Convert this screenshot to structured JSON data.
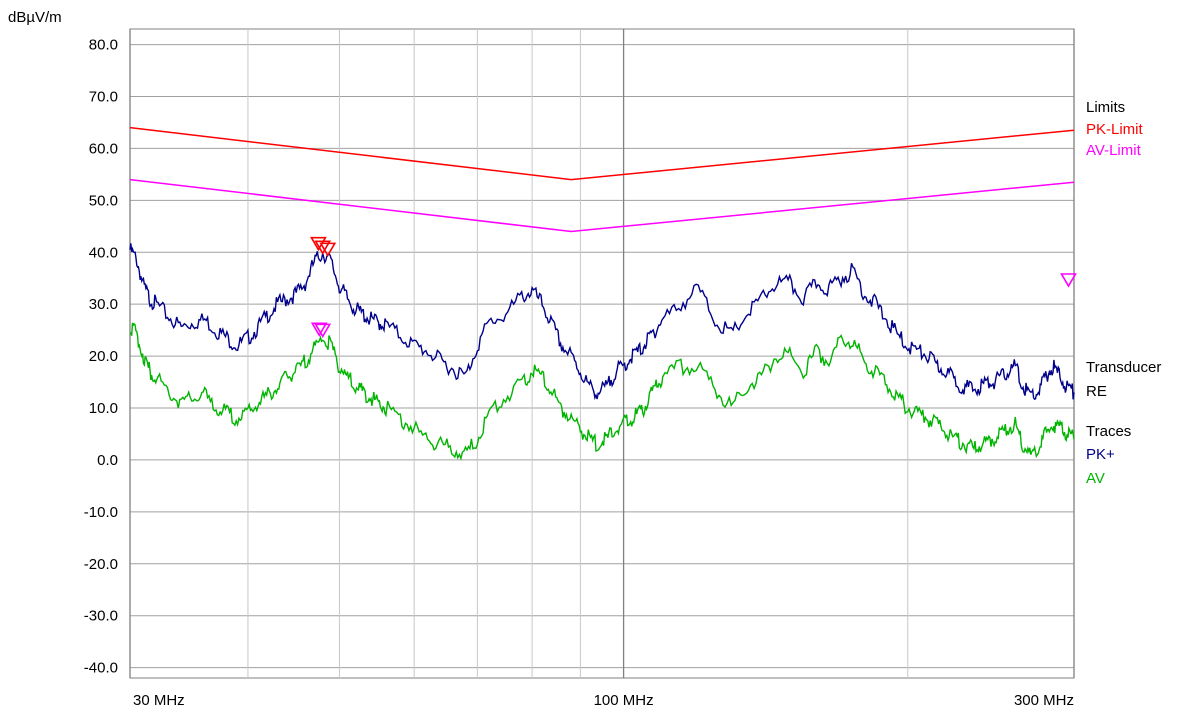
{
  "chart_data": {
    "type": "line",
    "ylabel": "dBµV/m",
    "xscale": "log",
    "xlim": [
      30,
      300
    ],
    "ylim": [
      -40,
      80
    ],
    "grid": true,
    "y_ticks": [
      "80.0",
      "70.0",
      "60.0",
      "50.0",
      "40.0",
      "30.0",
      "20.0",
      "10.0",
      "0.0",
      "-10.0",
      "-20.0",
      "-30.0",
      "-40.0"
    ],
    "x_ticks": [
      {
        "value": 30,
        "label": "30 MHz"
      },
      {
        "value": 100,
        "label": "100 MHz"
      },
      {
        "value": 300,
        "label": "300 MHz"
      }
    ],
    "x_gridlines_mhz": [
      30,
      40,
      50,
      60,
      70,
      80,
      90,
      100,
      200,
      300
    ],
    "legend": {
      "limits_heading": "Limits",
      "transducer_heading": "Transducer",
      "traces_heading": "Traces",
      "transducer_name": "RE"
    },
    "limits": [
      {
        "name": "PK-Limit",
        "color": "#ff0000",
        "x": [
          30,
          88,
          300
        ],
        "y": [
          64.0,
          54.0,
          63.5
        ]
      },
      {
        "name": "AV-Limit",
        "color": "#ff00ff",
        "x": [
          30,
          88,
          300
        ],
        "y": [
          54.0,
          44.0,
          53.5
        ]
      }
    ],
    "series": [
      {
        "name": "PK+",
        "color": "#00008b",
        "x": [
          30,
          30.5,
          31,
          31.5,
          32,
          33,
          34,
          35,
          36,
          37,
          38,
          39,
          40,
          41,
          42,
          43,
          44,
          45,
          46,
          47,
          48,
          49,
          50,
          51,
          52,
          53,
          54,
          55,
          56,
          58,
          60,
          62,
          64,
          66,
          68,
          70,
          72,
          75,
          78,
          80,
          82,
          84,
          86,
          88,
          90,
          92,
          94,
          96,
          98,
          100,
          102,
          104,
          106,
          108,
          110,
          115,
          120,
          125,
          130,
          135,
          140,
          145,
          150,
          155,
          160,
          165,
          170,
          175,
          180,
          185,
          190,
          195,
          200,
          205,
          210,
          215,
          220,
          225,
          230,
          235,
          240,
          245,
          250,
          255,
          260,
          265,
          270,
          275,
          280,
          285,
          290,
          295,
          300
        ],
        "y": [
          40.5,
          38.5,
          33.5,
          31,
          30,
          27.5,
          25.5,
          26.5,
          27,
          25,
          23.5,
          22,
          23.5,
          25.5,
          28,
          30,
          31,
          32,
          34,
          38,
          40,
          38,
          33.5,
          31,
          29,
          28,
          27,
          26.5,
          26,
          24,
          22,
          21,
          19,
          17.5,
          16,
          22,
          26.5,
          28,
          31.5,
          32.5,
          30,
          26,
          22,
          20,
          17,
          14,
          13,
          14,
          17,
          18,
          20,
          21,
          23,
          25,
          27,
          30,
          33,
          27,
          24,
          28,
          31,
          34,
          34,
          31,
          34,
          33,
          35,
          36.5,
          32,
          30,
          27,
          24,
          22,
          21,
          20,
          18,
          17,
          15,
          14,
          13.5,
          14.5,
          15,
          15.5,
          17,
          18,
          14,
          12.5,
          13,
          16,
          18,
          16,
          14,
          13
        ]
      },
      {
        "name": "AV",
        "color": "#00b400",
        "x": [
          30,
          30.5,
          31,
          31.5,
          32,
          33,
          34,
          35,
          36,
          37,
          38,
          39,
          40,
          41,
          42,
          43,
          44,
          45,
          46,
          47,
          48,
          49,
          50,
          51,
          52,
          53,
          54,
          55,
          56,
          58,
          60,
          62,
          64,
          66,
          68,
          70,
          72,
          75,
          78,
          80,
          82,
          84,
          86,
          88,
          90,
          92,
          94,
          96,
          98,
          100,
          102,
          104,
          106,
          108,
          110,
          115,
          120,
          125,
          130,
          135,
          140,
          145,
          150,
          155,
          160,
          165,
          170,
          175,
          180,
          185,
          190,
          195,
          200,
          205,
          210,
          215,
          220,
          225,
          230,
          235,
          240,
          245,
          250,
          255,
          260,
          265,
          270,
          275,
          280,
          285,
          290,
          295,
          300
        ],
        "y": [
          26,
          24,
          20,
          17,
          16,
          13,
          11,
          12,
          12.5,
          10,
          9,
          8,
          9,
          11,
          12.5,
          14,
          16,
          17,
          19,
          21.5,
          23.5,
          22,
          18,
          16,
          14,
          13,
          12,
          11,
          10,
          8,
          6,
          4,
          3,
          2,
          1,
          4,
          9,
          12,
          15,
          17,
          16,
          13,
          10,
          8,
          6,
          4,
          3,
          4,
          6,
          7,
          8,
          9,
          11,
          14,
          16,
          18,
          18,
          14,
          10,
          14,
          16,
          20,
          20,
          17,
          21,
          19,
          23,
          23,
          19,
          17,
          15,
          12,
          10,
          9,
          8,
          7,
          5,
          4,
          3,
          2,
          3,
          4,
          5,
          6,
          7,
          3,
          1,
          2,
          5,
          7,
          6,
          5,
          4
        ]
      }
    ]
  }
}
